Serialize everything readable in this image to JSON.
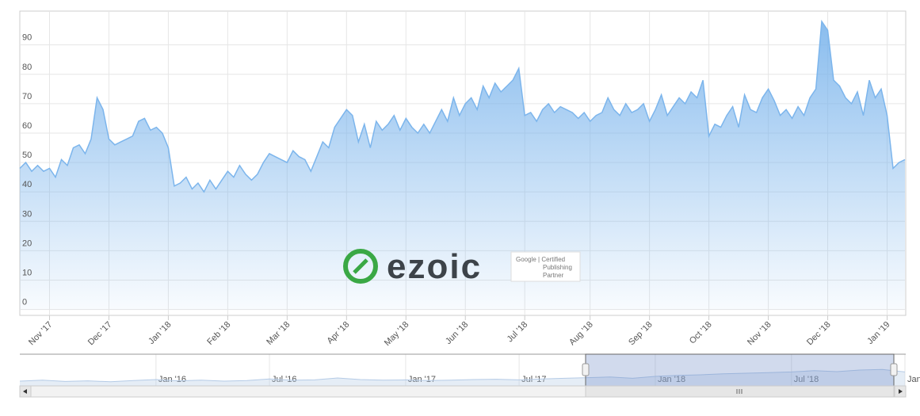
{
  "chart_data": [
    {
      "type": "area",
      "color": "#7cb5ec",
      "grid": true,
      "ylim": [
        -2,
        101.5
      ],
      "yticks": [
        0,
        10,
        20,
        30,
        40,
        50,
        60,
        70,
        80,
        90
      ],
      "categories": [
        null,
        null,
        null,
        null,
        null,
        "Nov '17",
        null,
        null,
        null,
        null,
        null,
        null,
        null,
        null,
        null,
        "Dec '17",
        null,
        null,
        null,
        null,
        null,
        null,
        null,
        null,
        null,
        "Jan '18",
        null,
        null,
        null,
        null,
        null,
        null,
        null,
        null,
        null,
        "Feb '18",
        null,
        null,
        null,
        null,
        null,
        null,
        null,
        null,
        null,
        "Mar '18",
        null,
        null,
        null,
        null,
        null,
        null,
        null,
        null,
        null,
        "Apr '18",
        null,
        null,
        null,
        null,
        null,
        null,
        null,
        null,
        null,
        "May '18",
        null,
        null,
        null,
        null,
        null,
        null,
        null,
        null,
        null,
        "Jun '18",
        null,
        null,
        null,
        null,
        null,
        null,
        null,
        null,
        null,
        "Jul '18",
        null,
        null,
        null,
        null,
        null,
        null,
        null,
        null,
        null,
        null,
        "Aug '18",
        null,
        null,
        null,
        null,
        null,
        null,
        null,
        null,
        null,
        "Sep '18",
        null,
        null,
        null,
        null,
        null,
        null,
        null,
        null,
        null,
        "Oct '18",
        null,
        null,
        null,
        null,
        null,
        null,
        null,
        null,
        null,
        "Nov '18",
        null,
        null,
        null,
        null,
        null,
        null,
        null,
        null,
        null,
        "Dec '18",
        null,
        null,
        null,
        null,
        null,
        null,
        null,
        null,
        null,
        "Jan '19",
        null,
        null,
        null
      ],
      "values": [
        48,
        50,
        47,
        49,
        47,
        48,
        45,
        51,
        49,
        55,
        56,
        53,
        58,
        72,
        68,
        58,
        56,
        57,
        58,
        59,
        64,
        65,
        61,
        62,
        60,
        55,
        42,
        43,
        45,
        41,
        43,
        40,
        44,
        41,
        44,
        47,
        45,
        49,
        46,
        44,
        46,
        50,
        53,
        52,
        51,
        50,
        54,
        52,
        51,
        47,
        52,
        57,
        55,
        62,
        65,
        68,
        66,
        57,
        63,
        55,
        64,
        61,
        63,
        66,
        61,
        65,
        62,
        60,
        63,
        60,
        64,
        68,
        64,
        72,
        66,
        70,
        72,
        68,
        76,
        72,
        77,
        74,
        76,
        78,
        82,
        66,
        67,
        64,
        68,
        70,
        67,
        69,
        68,
        67,
        65,
        67,
        64,
        66,
        67,
        72,
        68,
        66,
        70,
        67,
        68,
        70,
        64,
        68,
        73,
        66,
        69,
        72,
        70,
        74,
        72,
        78,
        59,
        63,
        62,
        66,
        69,
        62,
        73,
        68,
        67,
        72,
        75,
        71,
        66,
        68,
        65,
        69,
        66,
        72,
        75,
        98,
        95,
        78,
        76,
        72,
        70,
        74,
        66,
        78,
        72,
        75,
        66,
        48,
        50,
        51
      ]
    },
    {
      "type": "area",
      "color": "#b5cbe6",
      "ylim": [
        0,
        100
      ],
      "categories": [
        null,
        null,
        null,
        null,
        null,
        null,
        "Jan '16",
        null,
        null,
        null,
        null,
        "Jul '16",
        null,
        null,
        null,
        null,
        null,
        "Jan '17",
        null,
        null,
        null,
        null,
        "Jul '17",
        null,
        null,
        null,
        null,
        null,
        "Jan '18",
        null,
        null,
        null,
        null,
        null,
        "Jul '18",
        null,
        null,
        null,
        null,
        "Jan '"
      ],
      "values": [
        15,
        18,
        14,
        16,
        13,
        17,
        20,
        16,
        18,
        15,
        17,
        22,
        18,
        19,
        25,
        20,
        18,
        19,
        17,
        18,
        20,
        21,
        19,
        22,
        24,
        26,
        28,
        24,
        30,
        33,
        35,
        38,
        40,
        42,
        44,
        48,
        45,
        50,
        52,
        44
      ]
    }
  ],
  "watermark": {
    "brand": "ezoic",
    "badge": [
      "Google | Certified",
      "Publishing",
      "Partner"
    ]
  }
}
